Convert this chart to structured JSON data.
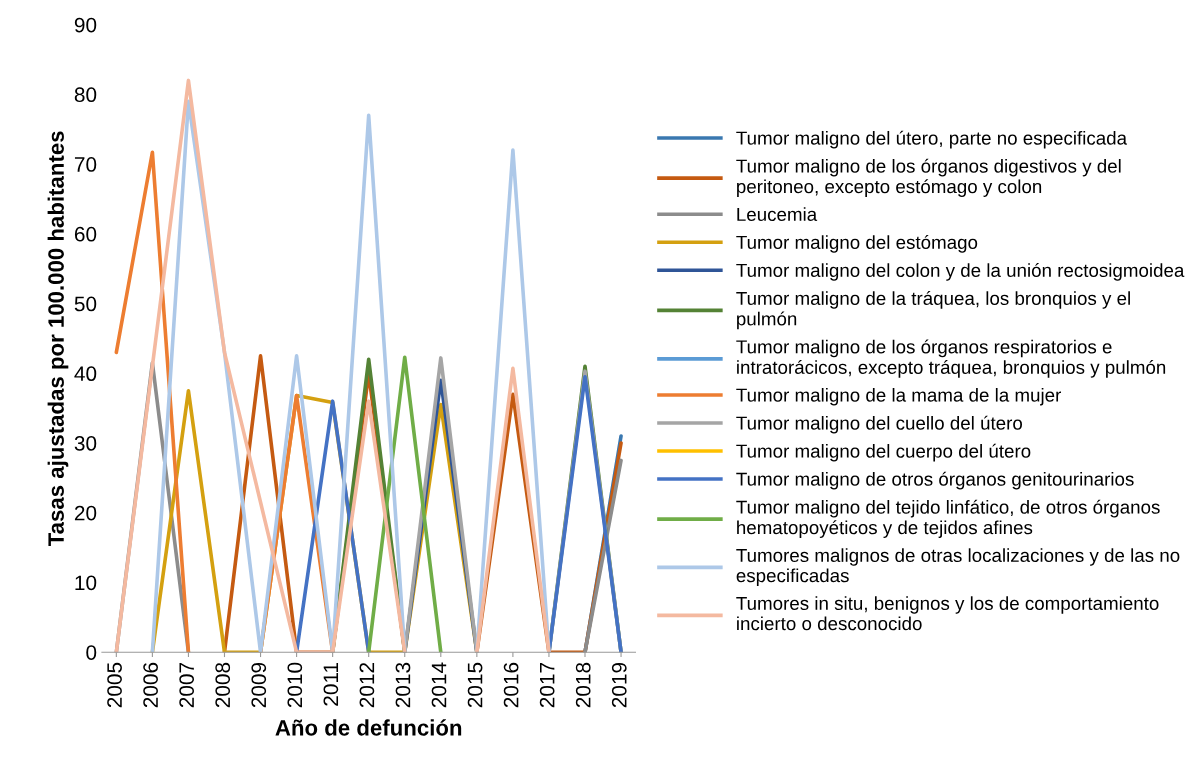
{
  "chart_data": {
    "type": "line",
    "xlabel": "Año de defunción",
    "ylabel": "Tasas ajustadas por 100.000 habitantes",
    "categories": [
      "2005",
      "2006",
      "2007",
      "2008",
      "2009",
      "2010",
      "2011",
      "2012",
      "2013",
      "2014",
      "2015",
      "2016",
      "2017",
      "2018",
      "2019"
    ],
    "ylim": [
      0,
      90
    ],
    "yticks": [
      0,
      10,
      20,
      30,
      40,
      50,
      60,
      70,
      80,
      90
    ],
    "grid": false,
    "legend": "right",
    "marker": "none",
    "line_style": "solid",
    "series": [
      {
        "name": "Tumor maligno del útero, parte no especificada",
        "color": "#3a78b0",
        "values": [
          null,
          null,
          null,
          null,
          null,
          null,
          null,
          null,
          null,
          null,
          null,
          null,
          null,
          0,
          31
        ]
      },
      {
        "name": "Tumor maligno de los órganos digestivos y del peritoneo, excepto estómago y colon",
        "color": "#c55a11",
        "values": [
          null,
          null,
          null,
          0,
          42.5,
          0,
          0,
          40,
          0,
          null,
          0,
          37,
          0,
          0,
          30
        ]
      },
      {
        "name": "Leucemia",
        "color": "#8c8c8c",
        "values": [
          0,
          41.5,
          0,
          null,
          null,
          null,
          null,
          null,
          null,
          null,
          null,
          null,
          null,
          0,
          27.5
        ]
      },
      {
        "name": "Tumor maligno del estómago",
        "color": "#d4a010",
        "values": [
          null,
          0,
          37.5,
          0,
          0,
          36.8,
          35.8,
          0,
          0,
          35.5,
          0,
          null,
          null,
          null,
          null
        ]
      },
      {
        "name": "Tumor maligno del colon y de la unión rectosigmoidea",
        "color": "#2f5597",
        "values": [
          null,
          null,
          null,
          null,
          null,
          null,
          null,
          null,
          0,
          39,
          0,
          null,
          null,
          null,
          null
        ]
      },
      {
        "name": "Tumor maligno de la tráquea, los bronquios y el pulmón",
        "color": "#548235",
        "values": [
          null,
          null,
          null,
          null,
          null,
          null,
          0,
          42,
          0,
          null,
          null,
          null,
          0,
          41,
          0
        ]
      },
      {
        "name": "Tumor maligno de los órganos respiratorios e intratorácicos, excepto tráquea, bronquios y pulmón",
        "color": "#5b9bd5",
        "values": [
          null,
          null,
          null,
          null,
          null,
          null,
          null,
          null,
          null,
          null,
          null,
          null,
          null,
          null,
          null
        ]
      },
      {
        "name": "Tumor maligno de la mama de la mujer",
        "color": "#ed7d31",
        "values": [
          43,
          71.7,
          0,
          null,
          0,
          36.8,
          0,
          null,
          null,
          null,
          null,
          null,
          null,
          null,
          null
        ]
      },
      {
        "name": "Tumor maligno del cuello del útero",
        "color": "#a5a5a5",
        "values": [
          null,
          null,
          null,
          null,
          null,
          null,
          null,
          null,
          0,
          42.2,
          0,
          null,
          0,
          40.3,
          0
        ]
      },
      {
        "name": "Tumor maligno del cuerpo del útero",
        "color": "#ffc000",
        "values": [
          null,
          null,
          null,
          null,
          null,
          null,
          null,
          null,
          null,
          null,
          null,
          null,
          null,
          null,
          null
        ]
      },
      {
        "name": "Tumor maligno de otros órganos genitourinarios",
        "color": "#4472c4",
        "values": [
          null,
          null,
          null,
          null,
          null,
          0,
          36,
          0,
          null,
          null,
          null,
          null,
          0,
          39.5,
          0
        ]
      },
      {
        "name": "Tumor maligno del tejido linfático, de otros órganos hematopoyéticos y de tejidos afines",
        "color": "#70ad47",
        "values": [
          null,
          null,
          null,
          null,
          null,
          null,
          null,
          0,
          42.3,
          0,
          null,
          null,
          null,
          null,
          null
        ]
      },
      {
        "name": "Tumores malignos de otras localizaciones y de las no especificadas",
        "color": "#adc8e8",
        "values": [
          null,
          0,
          79,
          43,
          0,
          42.5,
          0,
          77,
          0,
          null,
          0,
          72,
          0,
          null,
          null
        ]
      },
      {
        "name": "Tumores in situ, benignos y los de comportamiento incierto o desconocido",
        "color": "#f4b9a0",
        "values": [
          0,
          41,
          82,
          43,
          21.5,
          0,
          0,
          36,
          0,
          null,
          0,
          40.7,
          0,
          null,
          null
        ]
      }
    ]
  }
}
